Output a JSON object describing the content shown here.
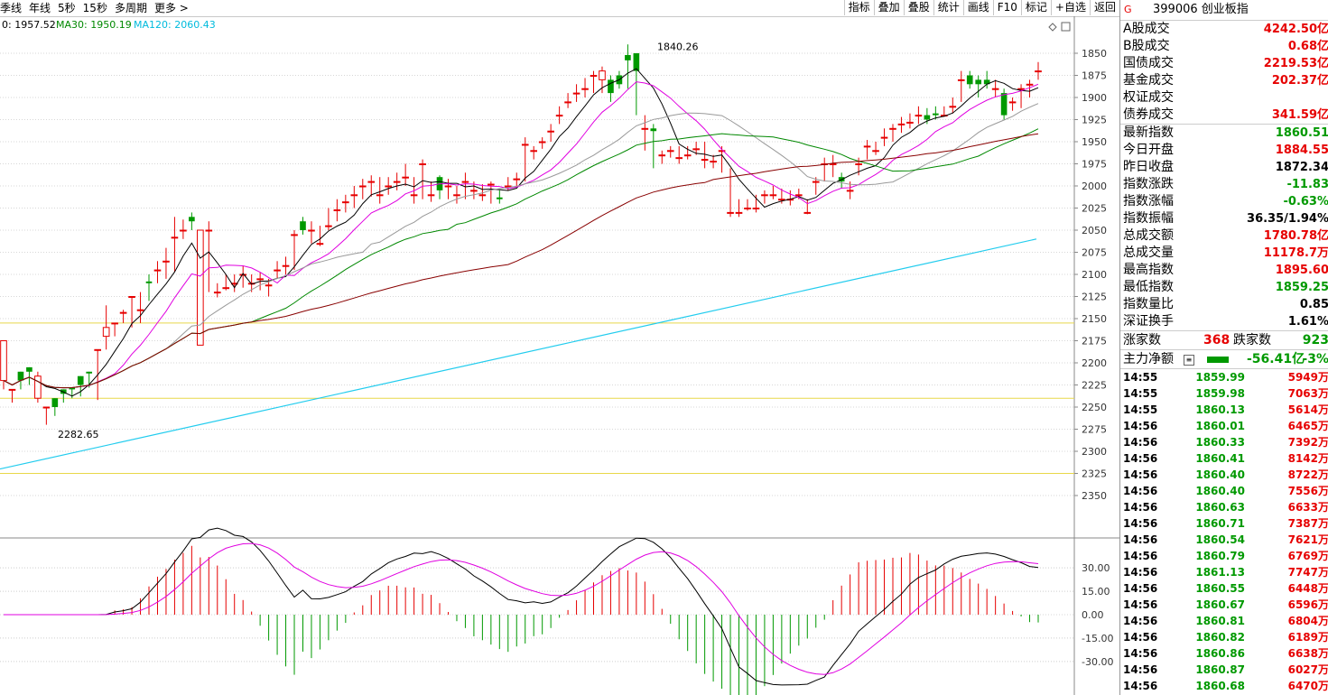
{
  "toolbar": {
    "left_items": [
      "季线",
      "年线",
      "5秒",
      "15秒",
      "多周期",
      "更多 >"
    ],
    "right_items": [
      "指标",
      "叠加",
      "叠股",
      "统计",
      "画线",
      "F10",
      "标记",
      "+自选",
      "返回"
    ]
  },
  "ma_legend": {
    "ma_text": "0: 1957.52",
    "ma30_text": "MA30: 1950.19",
    "ma120_text": "MA120: 2060.43",
    "ma_color": "#000000",
    "ma30_color": "#008800",
    "ma120_color": "#00bbdd"
  },
  "colors": {
    "up": "#e60000",
    "down": "#009900",
    "grid": "#b0b0b0",
    "yellow": "#f0e68c"
  },
  "chart_data": {
    "type": "candlestick",
    "y_axis": {
      "reversed": true,
      "ticks": [
        1850,
        1875,
        1900,
        1925,
        1950,
        1975,
        2000,
        2025,
        2050,
        2075,
        2100,
        2125,
        2150,
        2175,
        2200,
        2225,
        2250,
        2275,
        2300,
        2325,
        2350
      ],
      "range": [
        1825,
        2360
      ]
    },
    "annotations": [
      {
        "label": "1840.26",
        "value": 1840.26
      },
      {
        "label": "2282.65",
        "value": 2282.65
      }
    ],
    "hlines": [
      2155,
      2240,
      2325
    ],
    "candles": [
      [
        2175,
        2220,
        2175,
        2230
      ],
      [
        2230,
        2230,
        2235,
        2245
      ],
      [
        2220,
        2210,
        2230,
        2218
      ],
      [
        2210,
        2205,
        2225,
        2214
      ],
      [
        2215,
        2240,
        2210,
        2245
      ],
      [
        2250,
        2250,
        2270,
        2255
      ],
      [
        2250,
        2240,
        2260,
        2245
      ],
      [
        2235,
        2230,
        2245,
        2238
      ],
      [
        2230,
        2228,
        2240,
        2235
      ],
      [
        2225,
        2215,
        2230,
        2238
      ],
      [
        2212,
        2210,
        2218,
        2228
      ],
      [
        2185,
        2185,
        2235,
        2242
      ],
      [
        2160,
        2170,
        2135,
        2185
      ],
      [
        2155,
        2155,
        2170,
        2160
      ],
      [
        2143,
        2143,
        2155,
        2140
      ],
      [
        2125,
        2125,
        2160,
        2145
      ],
      [
        2140,
        2140,
        2155,
        2120
      ],
      [
        2110,
        2108,
        2130,
        2100
      ],
      [
        2095,
        2095,
        2110,
        2085
      ],
      [
        2085,
        2085,
        2105,
        2070
      ],
      [
        2058,
        2058,
        2097,
        2035
      ],
      [
        2050,
        2050,
        2060,
        2038
      ],
      [
        2040,
        2035,
        2050,
        2030
      ],
      [
        2050,
        2180,
        2055,
        2060
      ],
      [
        2050,
        2050,
        2120,
        2040
      ],
      [
        2120,
        2120,
        2126,
        2110
      ],
      [
        2115,
        2115,
        2118,
        2100
      ],
      [
        2110,
        2110,
        2120,
        2100
      ],
      [
        2100,
        2100,
        2115,
        2090
      ],
      [
        2110,
        2110,
        2120,
        2100
      ],
      [
        2105,
        2105,
        2118,
        2098
      ],
      [
        2112,
        2112,
        2125,
        2105
      ],
      [
        2095,
        2095,
        2105,
        2085
      ],
      [
        2090,
        2090,
        2100,
        2080
      ],
      [
        2055,
        2055,
        2095,
        2050
      ],
      [
        2050,
        2040,
        2055,
        2035
      ],
      [
        2050,
        2050,
        2065,
        2040
      ],
      [
        2065,
        2065,
        2068,
        2045
      ],
      [
        2045,
        2045,
        2050,
        2025
      ],
      [
        2027,
        2027,
        2040,
        2015
      ],
      [
        2018,
        2018,
        2030,
        2010
      ],
      [
        2010,
        2010,
        2025,
        2000
      ],
      [
        2000,
        2000,
        2015,
        1992
      ],
      [
        1995,
        1995,
        2012,
        1988
      ],
      [
        2010,
        2010,
        2020,
        1990
      ],
      [
        2000,
        2000,
        2010,
        1990
      ],
      [
        1995,
        1995,
        2005,
        1985
      ],
      [
        1990,
        1990,
        2000,
        1975
      ],
      [
        2010,
        2010,
        2020,
        1990
      ],
      [
        1975,
        1975,
        2015,
        1970
      ],
      [
        2010,
        2010,
        2018,
        1995
      ],
      [
        2005,
        1990,
        2015,
        1988
      ],
      [
        2000,
        2000,
        2015,
        1992
      ],
      [
        2010,
        2010,
        2020,
        2000
      ],
      [
        1995,
        1995,
        2015,
        1985
      ],
      [
        2005,
        2005,
        2015,
        1995
      ],
      [
        2010,
        2010,
        2017,
        1998
      ],
      [
        1998,
        1998,
        2020,
        1995
      ],
      [
        2015,
        2013,
        2020,
        2005
      ],
      [
        2000,
        2000,
        2005,
        1990
      ],
      [
        1992,
        1992,
        2000,
        1985
      ],
      [
        1953,
        1953,
        1995,
        1945
      ],
      [
        1960,
        1960,
        1970,
        1955
      ],
      [
        1950,
        1950,
        1958,
        1945
      ],
      [
        1938,
        1938,
        1950,
        1930
      ],
      [
        1920,
        1920,
        1930,
        1910
      ],
      [
        1905,
        1905,
        1912,
        1895
      ],
      [
        1895,
        1895,
        1905,
        1885
      ],
      [
        1890,
        1890,
        1900,
        1878
      ],
      [
        1875,
        1875,
        1895,
        1870
      ],
      [
        1870,
        1880,
        1895,
        1865
      ],
      [
        1895,
        1880,
        1905,
        1875
      ],
      [
        1885,
        1875,
        1890,
        1870
      ],
      [
        1858,
        1852,
        1890,
        1840
      ],
      [
        1870,
        1850,
        1920,
        1850
      ],
      [
        1935,
        1935,
        1960,
        1920
      ],
      [
        1938,
        1935,
        1980,
        1930
      ],
      [
        1965,
        1965,
        1975,
        1960
      ],
      [
        1960,
        1960,
        1968,
        1955
      ],
      [
        1968,
        1968,
        1975,
        1955
      ],
      [
        1965,
        1965,
        1970,
        1955
      ],
      [
        1958,
        1958,
        1965,
        1950
      ],
      [
        1970,
        1970,
        1980,
        1950
      ],
      [
        1972,
        1972,
        1980,
        1965
      ],
      [
        1960,
        1960,
        1985,
        1955
      ],
      [
        2030,
        2030,
        2035,
        1980
      ],
      [
        2030,
        2030,
        2035,
        2015
      ],
      [
        2025,
        2025,
        2028,
        2015
      ],
      [
        2025,
        2025,
        2030,
        2010
      ],
      [
        2010,
        2010,
        2020,
        2005
      ],
      [
        2010,
        2010,
        2015,
        2000
      ],
      [
        2015,
        2015,
        2020,
        2003
      ],
      [
        2015,
        2015,
        2022,
        2005
      ],
      [
        2010,
        2010,
        2015,
        2003
      ],
      [
        2030,
        2030,
        2032,
        2015
      ],
      [
        1995,
        1995,
        2010,
        1990
      ],
      [
        1975,
        1975,
        1995,
        1968
      ],
      [
        1975,
        1975,
        1990,
        1965
      ],
      [
        1995,
        1990,
        2003,
        1985
      ],
      [
        2005,
        2005,
        2015,
        1995
      ],
      [
        1975,
        1975,
        1988,
        1968
      ],
      [
        1955,
        1955,
        1970,
        1948
      ],
      [
        1960,
        1960,
        1965,
        1950
      ],
      [
        1945,
        1945,
        1955,
        1935
      ],
      [
        1935,
        1935,
        1950,
        1930
      ],
      [
        1930,
        1930,
        1940,
        1922
      ],
      [
        1928,
        1928,
        1935,
        1918
      ],
      [
        1920,
        1920,
        1930,
        1910
      ],
      [
        1925,
        1920,
        1930,
        1912
      ],
      [
        1920,
        1918,
        1925,
        1910
      ],
      [
        1920,
        1920,
        1922,
        1910
      ],
      [
        1910,
        1910,
        1918,
        1900
      ],
      [
        1880,
        1880,
        1905,
        1870
      ],
      [
        1885,
        1875,
        1890,
        1870
      ],
      [
        1885,
        1880,
        1900,
        1875
      ],
      [
        1885,
        1880,
        1890,
        1870
      ],
      [
        1890,
        1890,
        1900,
        1880
      ],
      [
        1920,
        1895,
        1925,
        1890
      ],
      [
        1905,
        1905,
        1915,
        1900
      ],
      [
        1890,
        1890,
        1912,
        1885
      ],
      [
        1885,
        1885,
        1900,
        1880
      ],
      [
        1870,
        1870,
        1880,
        1860
      ]
    ]
  },
  "macd": {
    "axis_labels": [
      "30.00",
      "15.00",
      "0.00",
      "-15.00",
      "-30.00"
    ]
  },
  "right_panel": {
    "title_g": "G",
    "title": "399006 创业板指",
    "volumes": [
      {
        "k": "A股成交",
        "v": "4242.50亿",
        "c": "red"
      },
      {
        "k": "B股成交",
        "v": "0.68亿",
        "c": "red"
      },
      {
        "k": "国债成交",
        "v": "2219.53亿",
        "c": "red"
      },
      {
        "k": "基金成交",
        "v": "202.37亿",
        "c": "red"
      },
      {
        "k": "权证成交",
        "v": "",
        "c": "red"
      },
      {
        "k": "债券成交",
        "v": "341.59亿",
        "c": "red"
      }
    ],
    "stats": [
      {
        "k": "最新指数",
        "v": "1860.51",
        "c": "green"
      },
      {
        "k": "今日开盘",
        "v": "1884.55",
        "c": "red"
      },
      {
        "k": "昨日收盘",
        "v": "1872.34",
        "c": "blk"
      },
      {
        "k": "指数涨跌",
        "v": "-11.83",
        "c": "green"
      },
      {
        "k": "指数涨幅",
        "v": "-0.63%",
        "c": "green"
      },
      {
        "k": "指数振幅",
        "v": "36.35/1.94%",
        "c": "blk"
      },
      {
        "k": "总成交额",
        "v": "1780.78亿",
        "c": "red"
      },
      {
        "k": "总成交量",
        "v": "11178.7万",
        "c": "red"
      },
      {
        "k": "最高指数",
        "v": "1895.60",
        "c": "red"
      },
      {
        "k": "最低指数",
        "v": "1859.25",
        "c": "green"
      },
      {
        "k": "指数量比",
        "v": "0.85",
        "c": "blk"
      },
      {
        "k": "深证换手",
        "v": "1.61%",
        "c": "blk"
      }
    ],
    "zd": {
      "up_label": "涨家数",
      "up": "368",
      "down_label": "跌家数",
      "down": "923"
    },
    "zl": {
      "label": "主力净额",
      "value": "-56.41亿",
      "pct": "-3%"
    },
    "ticks": [
      [
        "14:55",
        "1859.99",
        "5949万"
      ],
      [
        "14:55",
        "1859.98",
        "7063万"
      ],
      [
        "14:55",
        "1860.13",
        "5614万"
      ],
      [
        "14:56",
        "1860.01",
        "6465万"
      ],
      [
        "14:56",
        "1860.33",
        "7392万"
      ],
      [
        "14:56",
        "1860.41",
        "8142万"
      ],
      [
        "14:56",
        "1860.40",
        "8722万"
      ],
      [
        "14:56",
        "1860.40",
        "7556万"
      ],
      [
        "14:56",
        "1860.63",
        "6633万"
      ],
      [
        "14:56",
        "1860.71",
        "7387万"
      ],
      [
        "14:56",
        "1860.54",
        "7621万"
      ],
      [
        "14:56",
        "1860.79",
        "6769万"
      ],
      [
        "14:56",
        "1861.13",
        "7747万"
      ],
      [
        "14:56",
        "1860.55",
        "6448万"
      ],
      [
        "14:56",
        "1860.67",
        "6596万"
      ],
      [
        "14:56",
        "1860.81",
        "6804万"
      ],
      [
        "14:56",
        "1860.82",
        "6189万"
      ],
      [
        "14:56",
        "1860.86",
        "6638万"
      ],
      [
        "14:56",
        "1860.87",
        "6027万"
      ],
      [
        "14:56",
        "1860.68",
        "6470万"
      ]
    ]
  }
}
